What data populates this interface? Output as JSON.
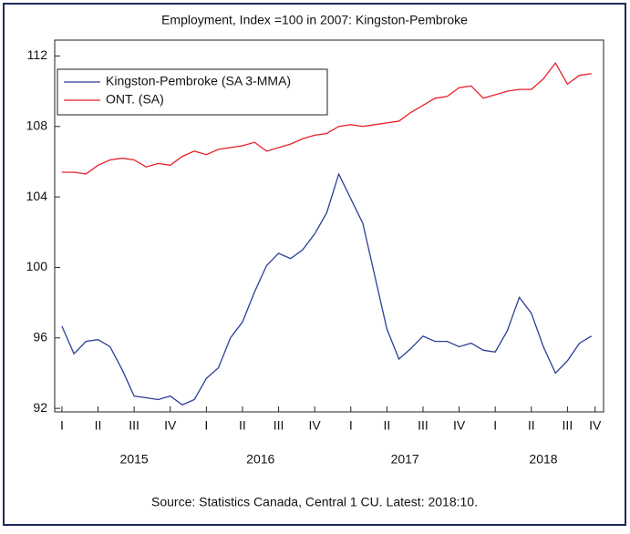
{
  "chart_data": {
    "type": "line",
    "title": "Employment, Index =100 in 2007: Kingston-Pembroke",
    "source": "Source: Statistics Canada, Central 1 CU. Latest: 2018:10.",
    "series": [
      {
        "name": "Kingston-Pembroke (SA 3-MMA)",
        "color": "#2b3f96",
        "values": [
          96.66,
          95.1,
          95.8,
          95.9,
          95.5,
          94.2,
          92.7,
          92.6,
          92.5,
          92.7,
          92.2,
          92.5,
          93.7,
          94.3,
          96.0,
          96.9,
          98.6,
          100.1,
          100.8,
          100.5,
          101.0,
          101.9,
          103.1,
          105.3,
          103.9,
          102.5,
          99.5,
          96.5,
          94.8,
          95.4,
          96.1,
          95.8,
          95.8,
          95.5,
          95.7,
          95.3,
          95.2,
          96.4,
          98.3,
          97.4,
          95.5,
          94.0,
          94.7,
          95.7,
          96.1
        ]
      },
      {
        "name": "ONT. (SA)",
        "color": "#e8202a",
        "values": [
          105.4,
          105.4,
          105.3,
          105.8,
          106.1,
          106.2,
          106.1,
          105.7,
          105.9,
          105.8,
          106.3,
          106.6,
          106.4,
          106.7,
          106.8,
          106.9,
          107.1,
          106.6,
          106.8,
          107.0,
          107.3,
          107.5,
          107.6,
          108.0,
          108.1,
          108.0,
          108.1,
          108.2,
          108.3,
          108.8,
          109.2,
          109.6,
          109.7,
          110.2,
          110.3,
          109.6,
          109.8,
          110.0,
          110.1,
          110.1,
          110.7,
          111.6,
          110.4,
          110.9,
          111.0
        ]
      }
    ],
    "ylim": [
      91.8,
      112.9
    ],
    "yticks": [
      92,
      96,
      100,
      104,
      108,
      112
    ],
    "xlim": [
      -0.6,
      45
    ],
    "xticks": [
      {
        "value": 0,
        "label": "I"
      },
      {
        "value": 3,
        "label": "II"
      },
      {
        "value": 6,
        "label": "III"
      },
      {
        "value": 9,
        "label": "IV"
      },
      {
        "value": 12,
        "label": "I"
      },
      {
        "value": 15,
        "label": "II"
      },
      {
        "value": 18,
        "label": "III"
      },
      {
        "value": 21,
        "label": "IV"
      },
      {
        "value": 24,
        "label": "I"
      },
      {
        "value": 27,
        "label": "II"
      },
      {
        "value": 30,
        "label": "III"
      },
      {
        "value": 33,
        "label": "IV"
      },
      {
        "value": 36,
        "label": "I"
      },
      {
        "value": 39,
        "label": "II"
      },
      {
        "value": 42,
        "label": "III"
      },
      {
        "value": 44.3,
        "label": "IV"
      }
    ],
    "year_labels": [
      {
        "value": 6,
        "label": "2015"
      },
      {
        "value": 16.5,
        "label": "2016"
      },
      {
        "value": 28.5,
        "label": "2017"
      },
      {
        "value": 40,
        "label": "2018"
      }
    ],
    "legend": "upper left",
    "grid": false
  }
}
